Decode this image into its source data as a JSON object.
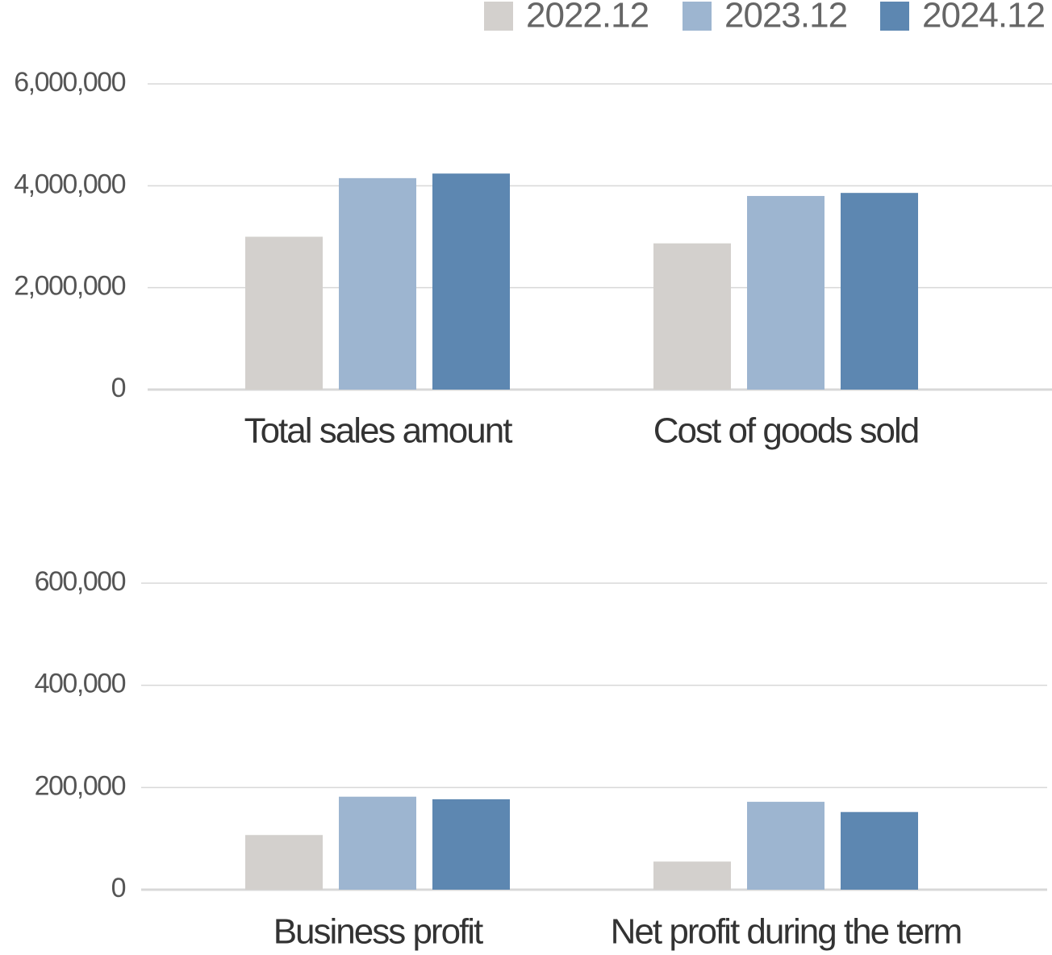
{
  "chart_data": [
    {
      "type": "bar",
      "categories": [
        "Total sales amount",
        "Cost of goods sold"
      ],
      "series": [
        {
          "name": "2022.12",
          "color": "#d3d0cd",
          "values": [
            3000000,
            2870000
          ]
        },
        {
          "name": "2023.12",
          "color": "#9db5d0",
          "values": [
            4150000,
            3800000
          ]
        },
        {
          "name": "2024.12",
          "color": "#5d87b1",
          "values": [
            4240000,
            3860000
          ]
        }
      ],
      "ylim": [
        0,
        6000000
      ],
      "yticks": [
        0,
        {
          "value": 2000000,
          "label": "2,000,000"
        },
        {
          "value": 4000000,
          "label": "4,000,000"
        },
        {
          "value": 6000000,
          "label": "6,000,000"
        }
      ],
      "grid": true,
      "legend": "top-right"
    },
    {
      "type": "bar",
      "categories": [
        "Business profit",
        "Net profit during the term"
      ],
      "series": [
        {
          "color": "#d3d0cd",
          "values": [
            107000,
            55000
          ]
        },
        {
          "color": "#9db5d0",
          "values": [
            182000,
            172000
          ]
        },
        {
          "color": "#5d87b1",
          "values": [
            177000,
            152000
          ]
        }
      ],
      "ylim": [
        0,
        600000
      ],
      "yticks": [
        0,
        {
          "value": 200000,
          "label": "200,000"
        },
        {
          "value": 400000,
          "label": "400,000"
        },
        {
          "value": 600000,
          "label": "600,000"
        }
      ],
      "grid": true
    }
  ]
}
